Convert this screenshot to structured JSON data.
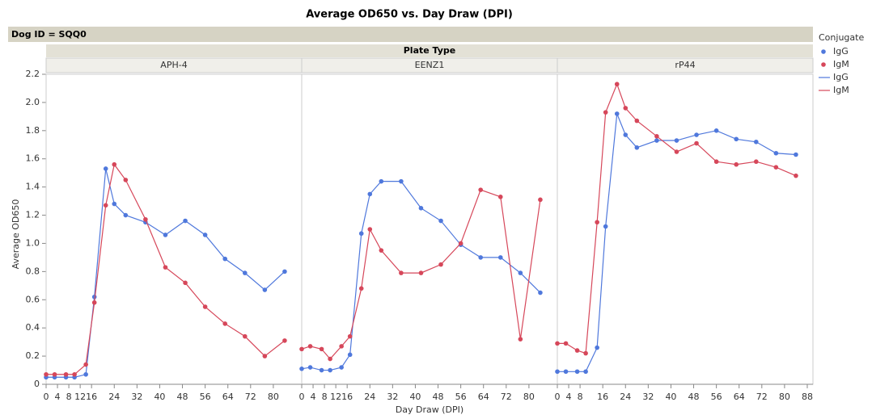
{
  "chart_data": {
    "type": "line",
    "title": "Average OD650 vs. Day Draw (DPI)",
    "group_label": "Dog ID = SQQ0",
    "facet_title": "Plate Type",
    "x_label": "Day Draw (DPI)",
    "y_label": "Average OD650",
    "legend_title": "Conjugate",
    "ylim": [
      0,
      2.2
    ],
    "yticks": [
      0,
      0.2,
      0.4,
      0.6,
      0.8,
      {
        "value": 1,
        "label": "1.0"
      },
      1.2,
      1.4,
      1.6,
      1.8,
      {
        "value": 2,
        "label": "2.0"
      },
      2.2
    ],
    "xlim": [
      0,
      90
    ],
    "x": [
      0,
      3,
      7,
      10,
      14,
      17,
      21,
      24,
      28,
      35,
      42,
      49,
      56,
      63,
      70,
      77,
      84
    ],
    "panels": [
      {
        "name": "APH-4",
        "xticks": [
          0,
          4,
          8,
          12,
          16,
          24,
          32,
          40,
          48,
          56,
          64,
          72,
          80
        ],
        "series": [
          {
            "name": "IgG",
            "color": "#4f78dc",
            "values": [
              0.05,
              0.05,
              0.05,
              0.05,
              0.07,
              0.62,
              1.53,
              1.28,
              1.2,
              1.15,
              1.06,
              1.16,
              1.06,
              0.89,
              0.79,
              0.67,
              0.8
            ]
          },
          {
            "name": "IgM",
            "color": "#d6475a",
            "values": [
              0.07,
              0.07,
              0.07,
              0.07,
              0.14,
              0.58,
              1.27,
              1.56,
              1.45,
              1.17,
              0.83,
              0.72,
              0.55,
              0.43,
              0.34,
              0.2,
              0.31
            ]
          }
        ]
      },
      {
        "name": "EENZ1",
        "xticks": [
          0,
          4,
          8,
          12,
          16,
          24,
          32,
          40,
          48,
          56,
          64,
          72,
          80
        ],
        "series": [
          {
            "name": "IgG",
            "color": "#4f78dc",
            "values": [
              0.11,
              0.12,
              0.1,
              0.1,
              0.12,
              0.21,
              1.07,
              1.35,
              1.44,
              1.44,
              1.25,
              1.16,
              0.99,
              0.9,
              0.9,
              0.79,
              0.65
            ]
          },
          {
            "name": "IgM",
            "color": "#d6475a",
            "values": [
              0.25,
              0.27,
              0.25,
              0.18,
              0.27,
              0.34,
              0.68,
              1.1,
              0.95,
              0.79,
              0.79,
              0.85,
              1.0,
              1.38,
              1.33,
              0.32,
              1.31
            ]
          }
        ]
      },
      {
        "name": "rP44",
        "xticks": [
          0,
          4,
          8,
          16,
          24,
          32,
          40,
          48,
          56,
          64,
          72,
          80,
          88
        ],
        "series": [
          {
            "name": "IgG",
            "color": "#4f78dc",
            "values": [
              0.09,
              0.09,
              0.09,
              0.09,
              0.26,
              1.12,
              1.92,
              1.77,
              1.68,
              1.73,
              1.73,
              1.77,
              1.8,
              1.74,
              1.72,
              1.64,
              1.63
            ]
          },
          {
            "name": "IgM",
            "color": "#d6475a",
            "values": [
              0.29,
              0.29,
              0.24,
              0.22,
              1.15,
              1.93,
              2.13,
              1.96,
              1.87,
              1.76,
              1.65,
              1.71,
              1.58,
              1.56,
              1.58,
              1.54,
              1.48
            ]
          }
        ]
      }
    ]
  }
}
